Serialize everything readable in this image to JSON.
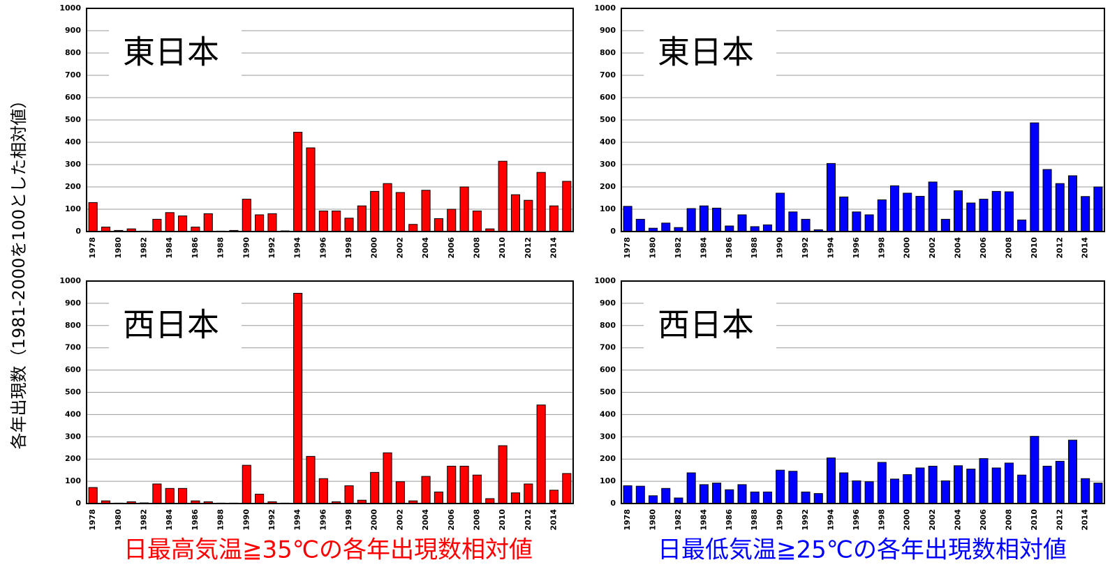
{
  "y_label": "各年出現数（1981-2000を100とした相対値）",
  "captions": [
    {
      "text": "日最高気温≧35℃の各年出現数相対値",
      "color": "#ff0000"
    },
    {
      "text": "日最低気温≧25℃の各年出現数相対値",
      "color": "#0000ff"
    }
  ],
  "chart_data": [
    {
      "type": "bar",
      "title": "東日本",
      "color": "#ff0000",
      "ylim": [
        0,
        1000
      ],
      "yticks": [
        0,
        100,
        200,
        300,
        400,
        500,
        600,
        700,
        800,
        900,
        1000
      ],
      "grid": true,
      "categories": [
        "1978",
        null,
        "1980",
        null,
        "1982",
        null,
        "1984",
        null,
        "1986",
        null,
        "1988",
        null,
        "1990",
        null,
        "1992",
        null,
        "1994",
        null,
        "1996",
        null,
        "1998",
        null,
        "2000",
        null,
        "2002",
        null,
        "2004",
        null,
        "2006",
        null,
        "2008",
        null,
        "2010",
        null,
        "2012",
        null,
        "2014",
        null
      ],
      "values": [
        130,
        20,
        5,
        12,
        2,
        55,
        85,
        70,
        20,
        80,
        2,
        5,
        145,
        75,
        80,
        3,
        445,
        375,
        92,
        92,
        60,
        115,
        180,
        215,
        175,
        32,
        185,
        58,
        100,
        200,
        92,
        12,
        315,
        165,
        140,
        265,
        115,
        225
      ]
    },
    {
      "type": "bar",
      "title": "東日本",
      "color": "#0000ff",
      "ylim": [
        0,
        1000
      ],
      "yticks": [
        0,
        100,
        200,
        300,
        400,
        500,
        600,
        700,
        800,
        900,
        1000
      ],
      "grid": true,
      "categories": [
        "1978",
        null,
        "1980",
        null,
        "1982",
        null,
        "1984",
        null,
        "1986",
        null,
        "1988",
        null,
        "1990",
        null,
        "1992",
        null,
        "1994",
        null,
        "1996",
        null,
        "1998",
        null,
        "2000",
        null,
        "2002",
        null,
        "2004",
        null,
        "2006",
        null,
        "2008",
        null,
        "2010",
        null,
        "2012",
        null,
        "2014",
        null
      ],
      "values": [
        113,
        55,
        15,
        38,
        18,
        103,
        115,
        105,
        25,
        75,
        22,
        30,
        172,
        88,
        55,
        8,
        305,
        155,
        88,
        75,
        142,
        205,
        172,
        158,
        222,
        55,
        183,
        128,
        145,
        180,
        178,
        52,
        487,
        278,
        215,
        250,
        157,
        200
      ]
    },
    {
      "type": "bar",
      "title": "西日本",
      "color": "#ff0000",
      "ylim": [
        0,
        1000
      ],
      "yticks": [
        0,
        100,
        200,
        300,
        400,
        500,
        600,
        700,
        800,
        900,
        1000
      ],
      "grid": true,
      "categories": [
        "1978",
        null,
        "1980",
        null,
        "1982",
        null,
        "1984",
        null,
        "1986",
        null,
        "1988",
        null,
        "1990",
        null,
        "1992",
        null,
        "1994",
        null,
        "1996",
        null,
        "1998",
        null,
        "2000",
        null,
        "2002",
        null,
        "2004",
        null,
        "2006",
        null,
        "2008",
        null,
        "2010",
        null,
        "2012",
        null,
        "2014",
        null
      ],
      "values": [
        72,
        12,
        2,
        8,
        3,
        88,
        68,
        68,
        12,
        8,
        2,
        2,
        172,
        42,
        8,
        2,
        945,
        212,
        112,
        8,
        80,
        15,
        140,
        228,
        98,
        12,
        122,
        52,
        168,
        168,
        128,
        22,
        260,
        48,
        88,
        443,
        60,
        135
      ]
    },
    {
      "type": "bar",
      "title": "西日本",
      "color": "#0000ff",
      "ylim": [
        0,
        1000
      ],
      "yticks": [
        0,
        100,
        200,
        300,
        400,
        500,
        600,
        700,
        800,
        900,
        1000
      ],
      "grid": true,
      "categories": [
        "1978",
        null,
        "1980",
        null,
        "1982",
        null,
        "1984",
        null,
        "1986",
        null,
        "1988",
        null,
        "1990",
        null,
        "1992",
        null,
        "1994",
        null,
        "1996",
        null,
        "1998",
        null,
        "2000",
        null,
        "2002",
        null,
        "2004",
        null,
        "2006",
        null,
        "2008",
        null,
        "2010",
        null,
        "2012",
        null,
        "2014",
        null
      ],
      "values": [
        80,
        78,
        35,
        68,
        25,
        138,
        85,
        92,
        62,
        85,
        52,
        52,
        150,
        145,
        52,
        45,
        205,
        138,
        102,
        98,
        185,
        110,
        130,
        160,
        168,
        102,
        170,
        155,
        202,
        160,
        182,
        128,
        302,
        168,
        190,
        285,
        112,
        92
      ]
    }
  ]
}
